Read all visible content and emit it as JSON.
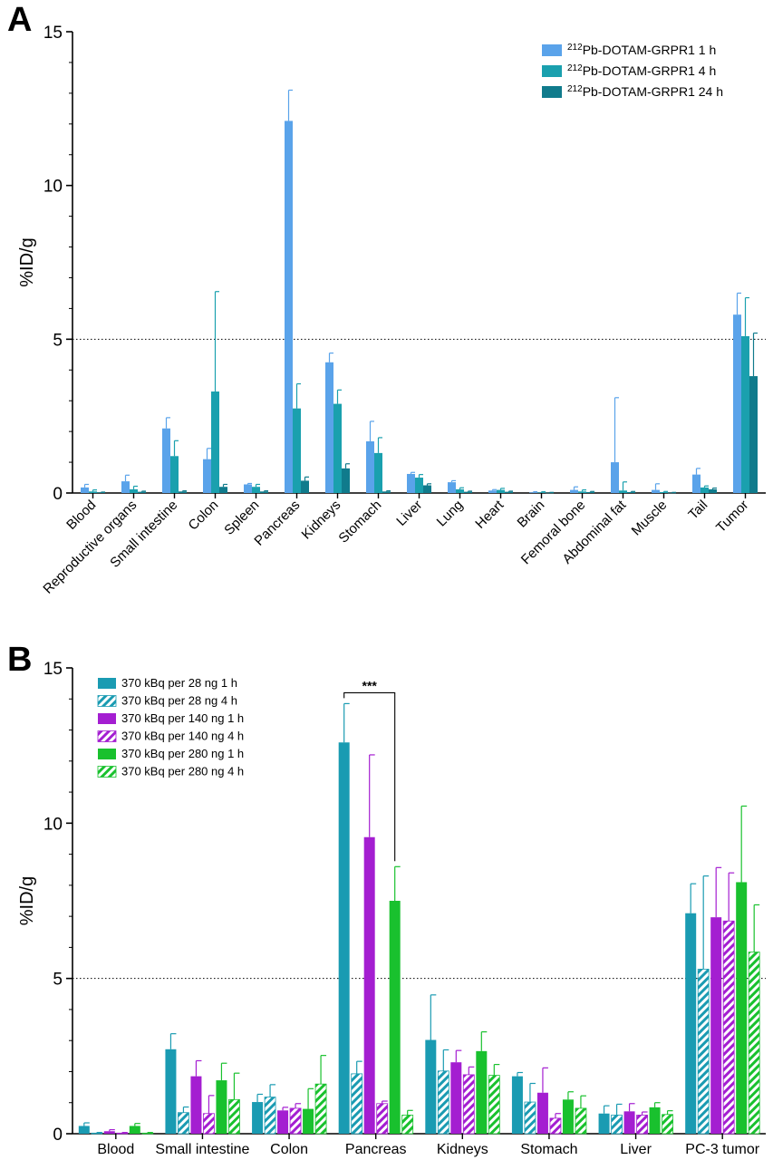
{
  "chart_data": [
    {
      "panel_label": "A",
      "type": "bar",
      "ylabel": "%ID/g",
      "ylim": [
        0,
        15
      ],
      "yticks": [
        "0",
        "5",
        "10",
        "15"
      ],
      "reference_line": 5,
      "grid": false,
      "legend_placement": "top-right",
      "categories": [
        "Blood",
        "Reproductive organs",
        "Small intestine",
        "Colon",
        "Spleen",
        "Pancreas",
        "Kidneys",
        "Stomach",
        "Liver",
        "Lung",
        "Heart",
        "Brain",
        "Femoral bone",
        "Abdominal fat",
        "Muscle",
        "Tail",
        "Tumor"
      ],
      "series": [
        {
          "name_sup": "212",
          "name": "Pb-DOTAM-GRPR1 1 h",
          "color": "#5aa3ea",
          "hatched": false,
          "values": [
            0.18,
            0.38,
            2.1,
            1.1,
            0.28,
            12.1,
            4.25,
            1.68,
            0.62,
            0.35,
            0.08,
            0.02,
            0.1,
            1.0,
            0.1,
            0.6,
            5.8
          ],
          "errors": [
            0.1,
            0.2,
            0.35,
            0.35,
            0.03,
            1.0,
            0.3,
            0.65,
            0.05,
            0.05,
            0.03,
            0.02,
            0.1,
            2.1,
            0.2,
            0.2,
            0.7
          ]
        },
        {
          "name_sup": "212",
          "name": "Pb-DOTAM-GRPR1 4 h",
          "color": "#1aa0ae",
          "hatched": false,
          "values": [
            0.05,
            0.12,
            1.2,
            3.3,
            0.2,
            2.75,
            2.9,
            1.3,
            0.5,
            0.12,
            0.1,
            0.02,
            0.05,
            0.08,
            0.03,
            0.18,
            5.1
          ],
          "errors": [
            0.05,
            0.1,
            0.5,
            3.25,
            0.08,
            0.8,
            0.45,
            0.5,
            0.1,
            0.05,
            0.05,
            0.02,
            0.05,
            0.28,
            0.02,
            0.05,
            1.25
          ]
        },
        {
          "name_sup": "212",
          "name": "Pb-DOTAM-GRPR1 24 h",
          "color": "#107b8c",
          "hatched": false,
          "values": [
            0.02,
            0.04,
            0.05,
            0.2,
            0.05,
            0.4,
            0.8,
            0.05,
            0.25,
            0.04,
            0.04,
            0.01,
            0.03,
            0.03,
            0.01,
            0.12,
            3.8
          ],
          "errors": [
            0.01,
            0.02,
            0.02,
            0.08,
            0.02,
            0.12,
            0.15,
            0.02,
            0.05,
            0.02,
            0.02,
            0.01,
            0.02,
            0.02,
            0.01,
            0.04,
            1.4
          ]
        }
      ]
    },
    {
      "panel_label": "B",
      "type": "bar",
      "ylabel": "%ID/g",
      "ylim": [
        0,
        15
      ],
      "yticks": [
        "0",
        "5",
        "10",
        "15"
      ],
      "reference_line": 5,
      "grid": false,
      "legend_placement": "top-left",
      "significance": {
        "label": "***",
        "category": "Pancreas",
        "from_series": 0,
        "to_series": 4
      },
      "categories": [
        "Blood",
        "Small intestine",
        "Colon",
        "Pancreas",
        "Kidneys",
        "Stomach",
        "Liver",
        "PC-3 tumor"
      ],
      "series": [
        {
          "name": "370 kBq per 28 ng 1 h",
          "color": "#1a9bb2",
          "hatched": false,
          "values": [
            0.25,
            2.72,
            1.02,
            12.6,
            3.02,
            1.85,
            0.65,
            7.1
          ],
          "errors": [
            0.1,
            0.5,
            0.25,
            1.25,
            1.45,
            0.12,
            0.25,
            0.95
          ]
        },
        {
          "name": "370 kBq per 28 ng 4 h",
          "color": "#1a9bb2",
          "hatched": true,
          "values": [
            0.02,
            0.68,
            1.18,
            1.93,
            2.02,
            1.02,
            0.6,
            5.3
          ],
          "errors": [
            0.02,
            0.18,
            0.4,
            0.4,
            0.68,
            0.6,
            0.35,
            3.0
          ]
        },
        {
          "name": "370 kBq per 140 ng 1 h",
          "color": "#a41ed1",
          "hatched": false,
          "values": [
            0.08,
            1.85,
            0.75,
            9.55,
            2.3,
            1.32,
            0.72,
            6.97
          ],
          "errors": [
            0.05,
            0.5,
            0.1,
            2.65,
            0.38,
            0.8,
            0.25,
            1.6
          ]
        },
        {
          "name": "370 kBq per 140 ng 4 h",
          "color": "#a41ed1",
          "hatched": true,
          "values": [
            0.02,
            0.65,
            0.82,
            0.97,
            1.9,
            0.5,
            0.6,
            6.85
          ],
          "errors": [
            0.02,
            0.58,
            0.15,
            0.08,
            0.25,
            0.15,
            0.1,
            1.55
          ]
        },
        {
          "name": "370 kBq per 280 ng 1 h",
          "color": "#19c12e",
          "hatched": false,
          "values": [
            0.25,
            1.72,
            0.8,
            7.5,
            2.66,
            1.1,
            0.85,
            8.1
          ],
          "errors": [
            0.08,
            0.55,
            0.65,
            1.1,
            0.62,
            0.25,
            0.15,
            2.45
          ]
        },
        {
          "name": "370 kBq per 280 ng 4 h",
          "color": "#19c12e",
          "hatched": true,
          "values": [
            0.02,
            1.1,
            1.6,
            0.6,
            1.88,
            0.82,
            0.62,
            5.85
          ],
          "errors": [
            0.02,
            0.85,
            0.92,
            0.15,
            0.35,
            0.4,
            0.12,
            1.52
          ]
        }
      ]
    }
  ]
}
